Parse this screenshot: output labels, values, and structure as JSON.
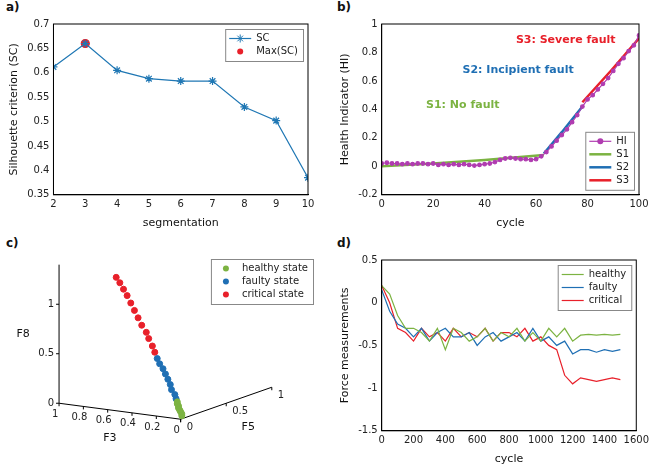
{
  "chart_data": [
    {
      "panel": "a)",
      "type": "line",
      "x_label": "segmentation",
      "y_label": "Silhouette criterion (SC)",
      "x": [
        2,
        3,
        4,
        5,
        6,
        7,
        8,
        9,
        10
      ],
      "xlim": [
        2,
        10
      ],
      "xticks": [
        2,
        3,
        4,
        5,
        6,
        7,
        8,
        9,
        10
      ],
      "ylim": [
        0.35,
        0.7
      ],
      "yticks": [
        0.35,
        0.4,
        0.45,
        0.5,
        0.55,
        0.6,
        0.65,
        0.7
      ],
      "grid": false,
      "legend": "upper right",
      "series": [
        {
          "name": "SC",
          "color": "#1f77b4",
          "marker": "star",
          "line_style": "solid",
          "values": [
            0.612,
            0.66,
            0.605,
            0.588,
            0.583,
            0.583,
            0.53,
            0.502,
            0.385
          ]
        },
        {
          "name": "Max(SC)",
          "color": "#e8202a",
          "marker": "circle",
          "line_style": "none",
          "values": [
            null,
            0.66,
            null,
            null,
            null,
            null,
            null,
            null,
            null
          ]
        }
      ]
    },
    {
      "panel": "b)",
      "type": "line",
      "x_label": "cycle",
      "y_label": "Health Indicator (HI)",
      "xlim": [
        0,
        100
      ],
      "xticks": [
        0,
        20,
        40,
        60,
        80,
        100
      ],
      "ylim": [
        -0.2,
        1
      ],
      "yticks": [
        -0.2,
        0,
        0.2,
        0.4,
        0.6,
        0.8,
        1
      ],
      "grid": false,
      "legend": "lower right",
      "series": [
        {
          "name": "HI",
          "color": "#b03cb0",
          "marker": "circle",
          "line_style": "solid",
          "x": [
            0,
            2,
            4,
            6,
            8,
            10,
            12,
            14,
            16,
            18,
            20,
            22,
            24,
            26,
            28,
            30,
            32,
            34,
            36,
            38,
            40,
            42,
            44,
            46,
            48,
            50,
            52,
            54,
            56,
            58,
            60,
            62,
            64,
            66,
            68,
            70,
            72,
            74,
            76,
            78,
            80,
            82,
            84,
            86,
            88,
            90,
            92,
            94,
            96,
            98,
            100
          ],
          "values": [
            0.02,
            0.025,
            0.02,
            0.02,
            0.015,
            0.02,
            0.015,
            0.02,
            0.02,
            0.015,
            0.02,
            0.01,
            0.015,
            0.01,
            0.015,
            0.01,
            0.015,
            0.01,
            0.005,
            0.01,
            0.015,
            0.02,
            0.03,
            0.045,
            0.055,
            0.06,
            0.055,
            0.05,
            0.05,
            0.045,
            0.05,
            0.07,
            0.1,
            0.14,
            0.18,
            0.22,
            0.26,
            0.31,
            0.36,
            0.42,
            0.47,
            0.5,
            0.54,
            0.58,
            0.62,
            0.67,
            0.72,
            0.76,
            0.81,
            0.85,
            0.92
          ]
        },
        {
          "name": "S1",
          "color": "#7cb342",
          "marker": "none",
          "line_style": "solid",
          "annotation": "S1: No fault",
          "x": [
            0,
            20,
            40,
            63
          ],
          "values": [
            0,
            0.02,
            0.045,
            0.08
          ]
        },
        {
          "name": "S2",
          "color": "#1f6fb4",
          "marker": "none",
          "line_style": "solid",
          "annotation": "S2: Incipient fault",
          "x": [
            63,
            70,
            78
          ],
          "values": [
            0.09,
            0.24,
            0.42
          ]
        },
        {
          "name": "S3",
          "color": "#e8202a",
          "marker": "none",
          "line_style": "solid",
          "annotation": "S3: Severe fault",
          "x": [
            78,
            89,
            100
          ],
          "values": [
            0.45,
            0.67,
            0.9
          ]
        }
      ]
    },
    {
      "panel": "c)",
      "type": "scatter3d",
      "x_label": "F3",
      "y_label": "F5",
      "z_label": "F8",
      "xlim": [
        0,
        1
      ],
      "xticks": [
        0,
        0.2,
        0.4,
        0.6,
        0.8,
        1
      ],
      "ylim": [
        0,
        1
      ],
      "yticks": [
        0,
        0.5,
        1
      ],
      "zlim": [
        0,
        1.4
      ],
      "zticks": [
        0,
        0.5,
        1
      ],
      "legend": "upper right",
      "series": [
        {
          "name": "healthy state",
          "color": "#7cb342",
          "marker": "circle",
          "line_style": "none",
          "x": [
            0.05,
            0.05,
            0.06,
            0.06,
            0.07,
            0.07,
            0.08,
            0.08
          ],
          "y": [
            0.08,
            0.08,
            0.08,
            0.07,
            0.07,
            0.07,
            0.07,
            0.07
          ],
          "z": [
            0,
            0.02,
            0.04,
            0.06,
            0.08,
            0.1,
            0.12,
            0.14
          ]
        },
        {
          "name": "faulty state",
          "color": "#1f6fb4",
          "marker": "circle",
          "line_style": "none",
          "x": [
            0.09,
            0.1,
            0.12,
            0.13,
            0.15,
            0.17,
            0.19,
            0.21,
            0.23
          ],
          "y": [
            0.07,
            0.07,
            0.06,
            0.06,
            0.06,
            0.06,
            0.06,
            0.05,
            0.05
          ],
          "z": [
            0.17,
            0.21,
            0.26,
            0.31,
            0.36,
            0.41,
            0.46,
            0.51,
            0.56
          ]
        },
        {
          "name": "critical state",
          "color": "#e8202a",
          "marker": "circle",
          "line_style": "none",
          "x": [
            0.25,
            0.27,
            0.3,
            0.32,
            0.35,
            0.38,
            0.41,
            0.44,
            0.47,
            0.5,
            0.53,
            0.56
          ],
          "y": [
            0.05,
            0.05,
            0.05,
            0.05,
            0.04,
            0.04,
            0.04,
            0.04,
            0.04,
            0.04,
            0.04,
            0.04
          ],
          "z": [
            0.62,
            0.68,
            0.75,
            0.81,
            0.88,
            0.95,
            1.02,
            1.09,
            1.16,
            1.22,
            1.28,
            1.33
          ]
        }
      ]
    },
    {
      "panel": "d)",
      "type": "line",
      "x_label": "cycle",
      "y_label": "Force measurements",
      "x": [
        0,
        50,
        100,
        150,
        200,
        250,
        300,
        350,
        400,
        450,
        500,
        550,
        600,
        650,
        700,
        750,
        800,
        850,
        900,
        950,
        1000,
        1050,
        1100,
        1150,
        1200,
        1250,
        1300,
        1350,
        1400,
        1450,
        1500
      ],
      "xlim": [
        0,
        1600
      ],
      "xticks": [
        0,
        200,
        400,
        600,
        800,
        1000,
        1200,
        1400,
        1600
      ],
      "ylim": [
        -1.5,
        0.5
      ],
      "yticks": [
        -1.5,
        -1,
        -0.5,
        0,
        0.5
      ],
      "grid": false,
      "legend": "upper right",
      "series": [
        {
          "name": "healthy",
          "color": "#7cb342",
          "marker": "none",
          "line_style": "solid",
          "values": [
            0.2,
            0.1,
            -0.15,
            -0.3,
            -0.3,
            -0.35,
            -0.45,
            -0.3,
            -0.55,
            -0.3,
            -0.35,
            -0.45,
            -0.4,
            -0.3,
            -0.45,
            -0.35,
            -0.4,
            -0.3,
            -0.45,
            -0.35,
            -0.45,
            -0.3,
            -0.4,
            -0.3,
            -0.45,
            -0.38,
            -0.37,
            -0.38,
            -0.37,
            -0.38,
            -0.37
          ]
        },
        {
          "name": "faulty",
          "color": "#1f6fb4",
          "marker": "none",
          "line_style": "solid",
          "values": [
            0.15,
            -0.1,
            -0.25,
            -0.3,
            -0.4,
            -0.3,
            -0.45,
            -0.35,
            -0.3,
            -0.4,
            -0.4,
            -0.35,
            -0.5,
            -0.4,
            -0.35,
            -0.45,
            -0.4,
            -0.35,
            -0.45,
            -0.3,
            -0.45,
            -0.4,
            -0.5,
            -0.45,
            -0.6,
            -0.55,
            -0.55,
            -0.58,
            -0.55,
            -0.57,
            -0.55
          ]
        },
        {
          "name": "critical",
          "color": "#e8202a",
          "marker": "none",
          "line_style": "solid",
          "values": [
            0.2,
            0,
            -0.3,
            -0.35,
            -0.45,
            -0.3,
            -0.4,
            -0.35,
            -0.45,
            -0.3,
            -0.4,
            -0.35,
            -0.4,
            -0.3,
            -0.45,
            -0.35,
            -0.35,
            -0.4,
            -0.3,
            -0.45,
            -0.4,
            -0.5,
            -0.55,
            -0.85,
            -0.95,
            -0.88,
            -0.9,
            -0.92,
            -0.9,
            -0.88,
            -0.9
          ]
        }
      ]
    }
  ]
}
